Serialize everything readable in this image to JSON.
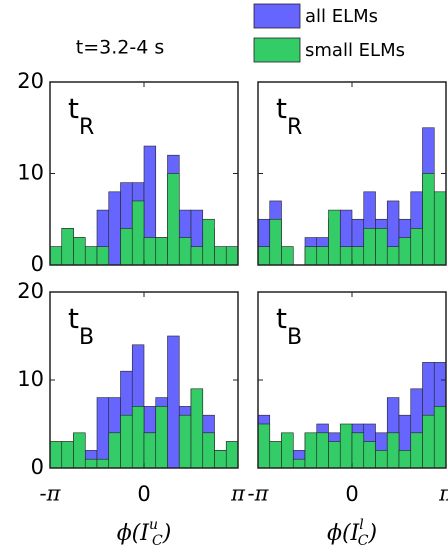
{
  "chart_data": [
    {
      "type": "histogram",
      "title": "t=3.2-4 s",
      "label": {
        "main": "t",
        "sub": "R"
      },
      "bins": [
        -3.1416,
        -2.7489,
        -2.3562,
        -1.9635,
        -1.5708,
        -1.1781,
        -0.7854,
        -0.3927,
        0,
        0.3927,
        0.7854,
        1.1781,
        1.5708,
        1.9635,
        2.3562,
        2.7489,
        3.1416
      ],
      "series": [
        {
          "name": "all ELMs",
          "color": "#6666ff",
          "values": [
            2,
            4,
            3,
            2,
            6,
            8,
            9,
            9,
            13,
            3,
            12,
            6,
            6,
            4,
            2,
            2
          ]
        },
        {
          "name": "small ELMs",
          "color": "#33cc66",
          "values": [
            2,
            4,
            3,
            2,
            2,
            0,
            4,
            7,
            3,
            3,
            10,
            3,
            2,
            5,
            2,
            2
          ]
        }
      ],
      "xlim": [
        -3.1416,
        3.1416
      ],
      "xticks": [
        {
          "value": -3.1416,
          "label": "-π"
        },
        0,
        {
          "value": 3.1416,
          "label": "π"
        }
      ],
      "ylim": [
        0,
        20
      ],
      "yticks": [
        0,
        10,
        20
      ]
    },
    {
      "type": "histogram",
      "label": {
        "main": "t",
        "sub": "R"
      },
      "bins": [
        -3.1416,
        -2.7489,
        -2.3562,
        -1.9635,
        -1.5708,
        -1.1781,
        -0.7854,
        -0.3927,
        0,
        0.3927,
        0.7854,
        1.1781,
        1.5708,
        1.9635,
        2.3562,
        2.7489,
        3.1416
      ],
      "series": [
        {
          "name": "all ELMs",
          "color": "#6666ff",
          "values": [
            5,
            7,
            2,
            0,
            3,
            3,
            5,
            6,
            5,
            8,
            5,
            7,
            5,
            8,
            15,
            8
          ]
        },
        {
          "name": "small ELMs",
          "color": "#33cc66",
          "values": [
            2,
            5,
            2,
            0,
            2,
            2,
            6,
            2,
            2,
            4,
            4,
            2,
            3,
            4,
            10,
            8
          ]
        }
      ],
      "xlim": [
        -3.1416,
        3.1416
      ],
      "xticks": [
        {
          "value": -3.1416,
          "label": "-π"
        },
        0,
        {
          "value": 3.1416,
          "label": "π"
        }
      ],
      "ylim": [
        0,
        20
      ],
      "yticks": [
        0,
        10,
        20
      ]
    },
    {
      "type": "histogram",
      "label": {
        "main": "t",
        "sub": "B"
      },
      "xlabel": {
        "base": "ϕ(I",
        "sub": "C",
        "sup": "u",
        "close": ")"
      },
      "bins": [
        -3.1416,
        -2.7489,
        -2.3562,
        -1.9635,
        -1.5708,
        -1.1781,
        -0.7854,
        -0.3927,
        0,
        0.3927,
        0.7854,
        1.1781,
        1.5708,
        1.9635,
        2.3562,
        2.7489,
        3.1416
      ],
      "series": [
        {
          "name": "all ELMs",
          "color": "#6666ff",
          "values": [
            3,
            3,
            4,
            2,
            8,
            8,
            11,
            14,
            7,
            8,
            15,
            7,
            9,
            6,
            2,
            3
          ]
        },
        {
          "name": "small ELMs",
          "color": "#33cc66",
          "values": [
            3,
            3,
            4,
            1,
            1,
            4,
            6,
            7,
            4,
            7,
            0,
            6,
            9,
            4,
            2,
            3
          ]
        }
      ],
      "xlim": [
        -3.1416,
        3.1416
      ],
      "xticks": [
        {
          "value": -3.1416,
          "label": "-π"
        },
        0,
        {
          "value": 3.1416,
          "label": "π"
        }
      ],
      "ylim": [
        0,
        20
      ],
      "yticks": [
        0,
        10,
        20
      ]
    },
    {
      "type": "histogram",
      "label": {
        "main": "t",
        "sub": "B"
      },
      "xlabel": {
        "base": "ϕ(I",
        "sub": "C",
        "sup": "l",
        "close": ")"
      },
      "bins": [
        -3.1416,
        -2.7489,
        -2.3562,
        -1.9635,
        -1.5708,
        -1.1781,
        -0.7854,
        -0.3927,
        0,
        0.3927,
        0.7854,
        1.1781,
        1.5708,
        1.9635,
        2.3562,
        2.7489,
        3.1416
      ],
      "series": [
        {
          "name": "all ELMs",
          "color": "#6666ff",
          "values": [
            6,
            3,
            4,
            2,
            4,
            5,
            4,
            4,
            5,
            5,
            4,
            8,
            6,
            9,
            12,
            12
          ]
        },
        {
          "name": "small ELMs",
          "color": "#33cc66",
          "values": [
            5,
            3,
            4,
            1,
            4,
            4,
            3,
            5,
            4,
            3,
            2,
            4,
            2,
            4,
            6,
            7
          ]
        }
      ],
      "xlim": [
        -3.1416,
        3.1416
      ],
      "xticks": [
        {
          "value": -3.1416,
          "label": "-π"
        },
        0,
        {
          "value": 3.1416,
          "label": "π"
        }
      ],
      "ylim": [
        0,
        20
      ],
      "yticks": [
        0,
        10,
        20
      ]
    }
  ]
}
